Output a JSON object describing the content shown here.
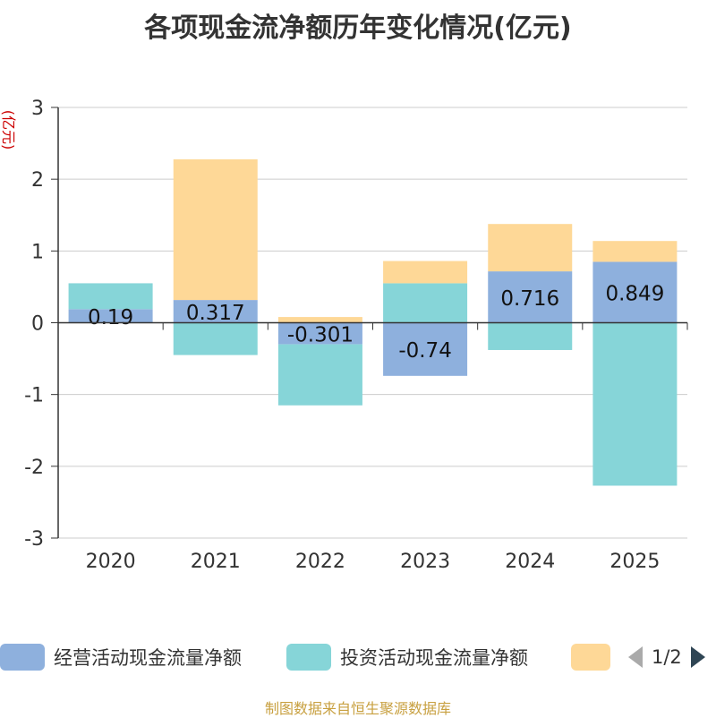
{
  "chart_data": {
    "type": "bar",
    "stacked": true,
    "title": "各项现金流净额历年变化情况(亿元)",
    "ylabel": "(亿元)",
    "ylim": [
      -3,
      3
    ],
    "yticks": [
      3,
      2,
      1,
      0,
      -1,
      -2,
      -3
    ],
    "categories": [
      "2020",
      "2021",
      "2022",
      "2023",
      "2024",
      "2025"
    ],
    "series": [
      {
        "name": "经营活动现金流量净额",
        "color": "#8eb0dd",
        "values": [
          0.19,
          0.317,
          -0.301,
          -0.74,
          0.716,
          0.849
        ]
      },
      {
        "name": "投资活动现金流量净额",
        "color": "#86d5d8",
        "values": [
          0.36,
          -0.45,
          -0.85,
          0.55,
          -0.38,
          -2.27
        ]
      },
      {
        "name": "",
        "color": "#fed897",
        "values": [
          0.0,
          1.96,
          0.08,
          0.31,
          0.66,
          0.29
        ]
      }
    ],
    "data_labels": [
      "0.19",
      "0.317",
      "-0.301",
      "-0.74",
      "0.716",
      "0.849"
    ]
  },
  "legend": {
    "item1": "经营活动现金流量净额",
    "item2": "投资活动现金流量净额",
    "pager": "1/2"
  },
  "source": "制图数据来自恒生聚源数据库"
}
